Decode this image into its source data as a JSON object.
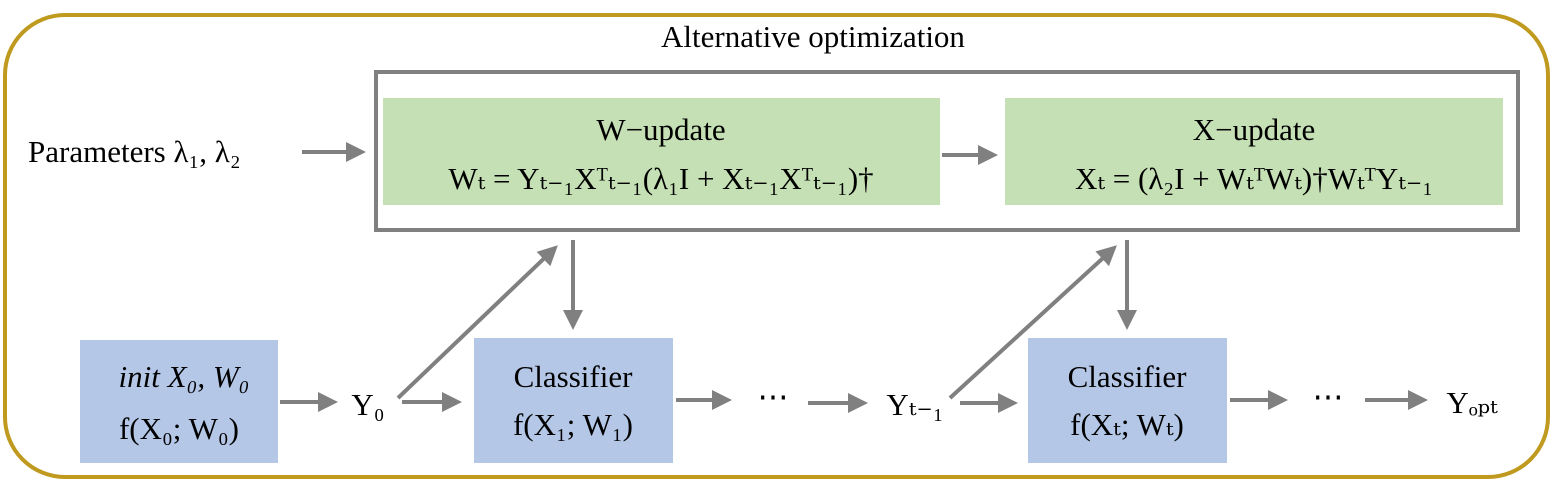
{
  "title": "Alternative optimization",
  "parameters": "Parameters λ₁, λ₂",
  "w_update": {
    "label": "W−update",
    "formula": "Wₜ = Yₜ₋₁Xᵀₜ₋₁(λ₁I + Xₜ₋₁Xᵀₜ₋₁)†"
  },
  "x_update": {
    "label": "X−update",
    "formula": "Xₜ = (λ₂I + WₜᵀWₜ)†WₜᵀYₜ₋₁"
  },
  "init": {
    "line1": "init X₀, W₀",
    "line2": "f(X₀; W₀)"
  },
  "y0": "Y₀",
  "classifier1": {
    "label": "Classifier",
    "formula": "f(X₁; W₁)"
  },
  "ellipsis1": "⋯",
  "y_prev": "Yₜ₋₁",
  "classifier2": {
    "label": "Classifier",
    "formula": "f(Xₜ; Wₜ)"
  },
  "ellipsis2": "⋯",
  "y_opt": "Yₒₚₜ"
}
